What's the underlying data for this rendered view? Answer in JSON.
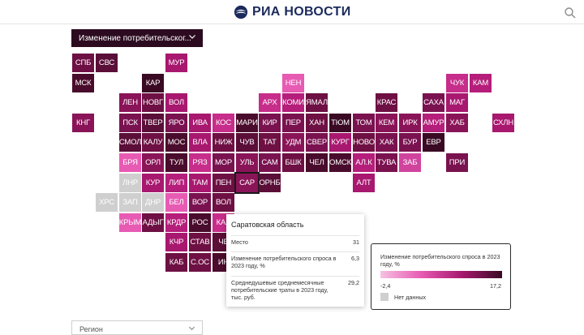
{
  "header": {
    "logo_text": "РИА НОВОСТИ",
    "brand_color": "#1b2a5c"
  },
  "indicator_select": {
    "label": "Изменение потребительског..."
  },
  "region_select": {
    "label": "Регион"
  },
  "regions": [
    {
      "code": "СПБ",
      "col": 0,
      "row": 0,
      "color": "#6e1043"
    },
    {
      "code": "СВС",
      "col": 1,
      "row": 0,
      "color": "#5a0e38"
    },
    {
      "code": "МУР",
      "col": 4,
      "row": 0,
      "color": "#a8186f"
    },
    {
      "code": "МСК",
      "col": 0,
      "row": 1,
      "color": "#4a0c2c"
    },
    {
      "code": "КАР",
      "col": 3,
      "row": 1,
      "color": "#3a0a24"
    },
    {
      "code": "НЕН",
      "col": 9,
      "row": 1,
      "color": "#e75bb3"
    },
    {
      "code": "ЧУК",
      "col": 16,
      "row": 1,
      "color": "#c72d8a"
    },
    {
      "code": "КАМ",
      "col": 17,
      "row": 1,
      "color": "#b51e7a"
    },
    {
      "code": "ЛЕН",
      "col": 2,
      "row": 2,
      "color": "#8a1458"
    },
    {
      "code": "НОВГ",
      "col": 3,
      "row": 2,
      "color": "#6e1043"
    },
    {
      "code": "ВОЛ",
      "col": 4,
      "row": 2,
      "color": "#a8186f"
    },
    {
      "code": "АРХ",
      "col": 8,
      "row": 2,
      "color": "#c72d8a"
    },
    {
      "code": "КОМИ",
      "col": 9,
      "row": 2,
      "color": "#b51e7a"
    },
    {
      "code": "ЯМАЛ",
      "col": 10,
      "row": 2,
      "color": "#6e1043"
    },
    {
      "code": "КРАС",
      "col": 13,
      "row": 2,
      "color": "#6e1043"
    },
    {
      "code": "САХА",
      "col": 15,
      "row": 2,
      "color": "#7a1250"
    },
    {
      "code": "МАГ",
      "col": 16,
      "row": 2,
      "color": "#a8186f"
    },
    {
      "code": "КНГ",
      "col": 0,
      "row": 3,
      "color": "#8a1458"
    },
    {
      "code": "ПСК",
      "col": 2,
      "row": 3,
      "color": "#7a1250"
    },
    {
      "code": "ТВЕР",
      "col": 3,
      "row": 3,
      "color": "#5a0e38"
    },
    {
      "code": "ЯРО",
      "col": 4,
      "row": 3,
      "color": "#7a1250"
    },
    {
      "code": "ИВА",
      "col": 5,
      "row": 3,
      "color": "#a8186f"
    },
    {
      "code": "КОС",
      "col": 6,
      "row": 3,
      "color": "#c72d8a"
    },
    {
      "code": "МАРИ",
      "col": 7,
      "row": 3,
      "color": "#4a0c2c"
    },
    {
      "code": "КИР",
      "col": 8,
      "row": 3,
      "color": "#7a1250"
    },
    {
      "code": "ПЕР",
      "col": 9,
      "row": 3,
      "color": "#7a1250"
    },
    {
      "code": "ХАН",
      "col": 10,
      "row": 3,
      "color": "#6e1043"
    },
    {
      "code": "ТЮМ",
      "col": 11,
      "row": 3,
      "color": "#3a0a24"
    },
    {
      "code": "ТОМ",
      "col": 12,
      "row": 3,
      "color": "#7a1250"
    },
    {
      "code": "КЕМ",
      "col": 13,
      "row": 3,
      "color": "#8a1458"
    },
    {
      "code": "ИРК",
      "col": 14,
      "row": 3,
      "color": "#8a1458"
    },
    {
      "code": "АМУР",
      "col": 15,
      "row": 3,
      "color": "#b51e7a"
    },
    {
      "code": "ХАБ",
      "col": 16,
      "row": 3,
      "color": "#8a1458"
    },
    {
      "code": "СХЛН",
      "col": 18,
      "row": 3,
      "color": "#a8186f"
    },
    {
      "code": "СМОЛ",
      "col": 2,
      "row": 4,
      "color": "#5a0e38"
    },
    {
      "code": "КАЛУ",
      "col": 3,
      "row": 4,
      "color": "#6e1043"
    },
    {
      "code": "МОС",
      "col": 4,
      "row": 4,
      "color": "#4a0c2c"
    },
    {
      "code": "ВЛА",
      "col": 5,
      "row": 4,
      "color": "#a8186f"
    },
    {
      "code": "НИЖ",
      "col": 6,
      "row": 4,
      "color": "#6e1043"
    },
    {
      "code": "ЧУВ",
      "col": 7,
      "row": 4,
      "color": "#5a0e38"
    },
    {
      "code": "ТАТ",
      "col": 8,
      "row": 4,
      "color": "#6e1043"
    },
    {
      "code": "УДМ",
      "col": 9,
      "row": 4,
      "color": "#8a1458"
    },
    {
      "code": "СВЕР",
      "col": 10,
      "row": 4,
      "color": "#7a1250"
    },
    {
      "code": "КУРГ",
      "col": 11,
      "row": 4,
      "color": "#a8186f"
    },
    {
      "code": "НОВО",
      "col": 12,
      "row": 4,
      "color": "#6e1043"
    },
    {
      "code": "ХАК",
      "col": 13,
      "row": 4,
      "color": "#7a1250"
    },
    {
      "code": "БУР",
      "col": 14,
      "row": 4,
      "color": "#7a1250"
    },
    {
      "code": "ЕВР",
      "col": 15,
      "row": 4,
      "color": "#3a0a24"
    },
    {
      "code": "БРЯ",
      "col": 2,
      "row": 5,
      "color": "#e75bb3"
    },
    {
      "code": "ОРЛ",
      "col": 3,
      "row": 5,
      "color": "#8a1458"
    },
    {
      "code": "ТУЛ",
      "col": 4,
      "row": 5,
      "color": "#4a0c2c"
    },
    {
      "code": "РЯЗ",
      "col": 5,
      "row": 5,
      "color": "#c72d8a"
    },
    {
      "code": "МОР",
      "col": 6,
      "row": 5,
      "color": "#7a1250"
    },
    {
      "code": "УЛЬ",
      "col": 7,
      "row": 5,
      "color": "#8a1458"
    },
    {
      "code": "САМ",
      "col": 8,
      "row": 5,
      "color": "#7a1250"
    },
    {
      "code": "БШК",
      "col": 9,
      "row": 5,
      "color": "#6e1043"
    },
    {
      "code": "ЧЕЛ",
      "col": 10,
      "row": 5,
      "color": "#4a0c2c"
    },
    {
      "code": "ОМСК",
      "col": 11,
      "row": 5,
      "color": "#4a0c2c"
    },
    {
      "code": "АЛ.К",
      "col": 12,
      "row": 5,
      "color": "#b51e7a"
    },
    {
      "code": "ТУВА",
      "col": 13,
      "row": 5,
      "color": "#7a1250"
    },
    {
      "code": "ЗАБ",
      "col": 14,
      "row": 5,
      "color": "#d0449e"
    },
    {
      "code": "ПРИ",
      "col": 16,
      "row": 5,
      "color": "#7a1250"
    },
    {
      "code": "ЛНР",
      "col": 2,
      "row": 6,
      "color": "#cfcfcf"
    },
    {
      "code": "КУР",
      "col": 3,
      "row": 6,
      "color": "#a8186f"
    },
    {
      "code": "ЛИП",
      "col": 4,
      "row": 6,
      "color": "#b51e7a"
    },
    {
      "code": "ТАМ",
      "col": 5,
      "row": 6,
      "color": "#a8186f"
    },
    {
      "code": "ПЕН",
      "col": 6,
      "row": 6,
      "color": "#6e1043"
    },
    {
      "code": "САР",
      "col": 7,
      "row": 6,
      "color": "#8a1458",
      "selected": true
    },
    {
      "code": "ОРНБ",
      "col": 8,
      "row": 6,
      "color": "#5a0e38"
    },
    {
      "code": "АЛТ",
      "col": 12,
      "row": 6,
      "color": "#a8186f"
    },
    {
      "code": "ХРС",
      "col": 1,
      "row": 7,
      "color": "#cfcfcf"
    },
    {
      "code": "ЗАП",
      "col": 2,
      "row": 7,
      "color": "#cfcfcf"
    },
    {
      "code": "ДНР",
      "col": 3,
      "row": 7,
      "color": "#cfcfcf"
    },
    {
      "code": "БЕЛ",
      "col": 4,
      "row": 7,
      "color": "#e75bb3"
    },
    {
      "code": "ВОР",
      "col": 5,
      "row": 7,
      "color": "#7a1250"
    },
    {
      "code": "ВОЛ",
      "col": 6,
      "row": 7,
      "color": "#6e1043"
    },
    {
      "code": "КРЫМ",
      "col": 2,
      "row": 8,
      "color": "#e75bb3"
    },
    {
      "code": "АДЫГ",
      "col": 3,
      "row": 8,
      "color": "#6e1043"
    },
    {
      "code": "КРДР",
      "col": 4,
      "row": 8,
      "color": "#b51e7a"
    },
    {
      "code": "РОС",
      "col": 5,
      "row": 8,
      "color": "#4a0c2c"
    },
    {
      "code": "КАЛ",
      "col": 6,
      "row": 8,
      "color": "#c72d8a"
    },
    {
      "code": "КЧР",
      "col": 4,
      "row": 9,
      "color": "#a8186f"
    },
    {
      "code": "СТАВ",
      "col": 5,
      "row": 9,
      "color": "#6e1043"
    },
    {
      "code": "ЧЕ",
      "col": 6,
      "row": 9,
      "color": "#5a0e38"
    },
    {
      "code": "КАБ",
      "col": 4,
      "row": 10,
      "color": "#6e1043"
    },
    {
      "code": "С.ОС",
      "col": 5,
      "row": 10,
      "color": "#6e1043"
    },
    {
      "code": "ИН",
      "col": 6,
      "row": 10,
      "color": "#4a0c2c"
    }
  ],
  "tooltip": {
    "title": "Саратовская область",
    "rows": [
      {
        "label": "Место",
        "value": "31"
      },
      {
        "label": "Изменение потребительского спроса в 2023 году, %",
        "value": "6,3"
      },
      {
        "label": "Среднедушевые среднемесячные потребительские траты в 2023 году, тыс. руб.",
        "value": "29,2"
      }
    ]
  },
  "legend": {
    "title": "Изменение потребительского спроса в 2023 году, %",
    "min": "-2,4",
    "max": "17,2",
    "no_data": "Нет данных",
    "gradient": [
      "#f6c2e2",
      "#e75bb3",
      "#a8186f",
      "#3a0a24"
    ],
    "no_data_color": "#cfcfcf"
  }
}
